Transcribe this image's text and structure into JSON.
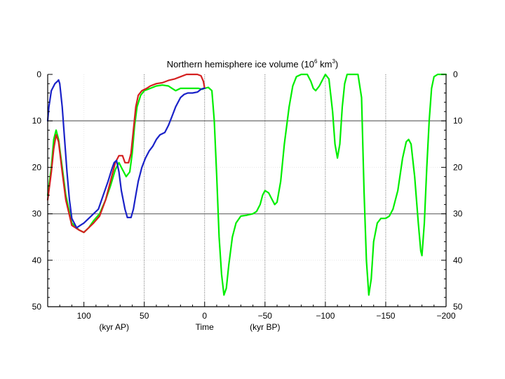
{
  "chart_data": {
    "type": "line",
    "title": "Northern hemisphere ice volume (10",
    "title_exp1": "6",
    "title_mid": " km",
    "title_exp2": "3",
    "title_end": ")",
    "x_axis": {
      "range": [
        130,
        -200
      ],
      "ticks": [
        100,
        50,
        0,
        -50,
        -100,
        -150,
        -200
      ],
      "tick_labels": [
        "100",
        "50",
        "0",
        "−50",
        "−100",
        "−150",
        "−200"
      ],
      "labels": [
        {
          "x": 75,
          "text": "(kyr AP)"
        },
        {
          "x": 0,
          "text": "Time"
        },
        {
          "x": -50,
          "text": "(kyr BP)"
        }
      ]
    },
    "y_axis": {
      "range": [
        0,
        50
      ],
      "inverted": true,
      "ticks": [
        0,
        10,
        20,
        30,
        40,
        50
      ],
      "tick_labels": [
        "0",
        "10",
        "20",
        "30",
        "40",
        "50"
      ]
    },
    "reference_lines_y": [
      10,
      30
    ],
    "dotted_lines_x": [
      50,
      0,
      -50,
      -100,
      -150
    ],
    "series": [
      {
        "color": "#00ee00",
        "points": [
          [
            130,
            26
          ],
          [
            127,
            20
          ],
          [
            125,
            14
          ],
          [
            123,
            12
          ],
          [
            121,
            14
          ],
          [
            118,
            20
          ],
          [
            115,
            26
          ],
          [
            110,
            32
          ],
          [
            104,
            33.5
          ],
          [
            100,
            34
          ],
          [
            96,
            33
          ],
          [
            92,
            31.5
          ],
          [
            87,
            30
          ],
          [
            82,
            27
          ],
          [
            78,
            24
          ],
          [
            74,
            20.5
          ],
          [
            71,
            19
          ],
          [
            68,
            20.5
          ],
          [
            65,
            22
          ],
          [
            62,
            21
          ],
          [
            60,
            17
          ],
          [
            58,
            11
          ],
          [
            56,
            7
          ],
          [
            53,
            4.5
          ],
          [
            50,
            3.5
          ],
          [
            45,
            3
          ],
          [
            40,
            2.5
          ],
          [
            35,
            2.3
          ],
          [
            30,
            2.5
          ],
          [
            27,
            3
          ],
          [
            24,
            3.5
          ],
          [
            20,
            3
          ],
          [
            15,
            3
          ],
          [
            10,
            3
          ],
          [
            5,
            3
          ],
          [
            2,
            3.2
          ],
          [
            0,
            3
          ],
          [
            -3,
            2.8
          ],
          [
            -6,
            3.5
          ],
          [
            -8,
            10
          ],
          [
            -10,
            22
          ],
          [
            -12,
            35
          ],
          [
            -14,
            43
          ],
          [
            -16,
            47.5
          ],
          [
            -18,
            46
          ],
          [
            -20,
            41
          ],
          [
            -23,
            35
          ],
          [
            -26,
            32
          ],
          [
            -30,
            30.5
          ],
          [
            -35,
            30.3
          ],
          [
            -40,
            30
          ],
          [
            -43,
            29.5
          ],
          [
            -46,
            28
          ],
          [
            -48,
            26
          ],
          [
            -50,
            25
          ],
          [
            -53,
            25.5
          ],
          [
            -55,
            26.5
          ],
          [
            -58,
            28
          ],
          [
            -60,
            27.5
          ],
          [
            -63,
            23
          ],
          [
            -66,
            15
          ],
          [
            -70,
            7
          ],
          [
            -73,
            2.5
          ],
          [
            -76,
            0.5
          ],
          [
            -80,
            0
          ],
          [
            -85,
            0
          ],
          [
            -88,
            1.5
          ],
          [
            -90,
            3
          ],
          [
            -92,
            3.5
          ],
          [
            -95,
            2.5
          ],
          [
            -98,
            1
          ],
          [
            -100,
            0
          ],
          [
            -103,
            1
          ],
          [
            -106,
            8
          ],
          [
            -108,
            15
          ],
          [
            -110,
            18
          ],
          [
            -112,
            15
          ],
          [
            -114,
            7
          ],
          [
            -116,
            2
          ],
          [
            -118,
            0
          ],
          [
            -122,
            0
          ],
          [
            -127,
            0
          ],
          [
            -130,
            5
          ],
          [
            -132,
            25
          ],
          [
            -134,
            40
          ],
          [
            -136,
            47.5
          ],
          [
            -138,
            44
          ],
          [
            -140,
            36
          ],
          [
            -143,
            32
          ],
          [
            -146,
            31
          ],
          [
            -150,
            31
          ],
          [
            -153,
            30.5
          ],
          [
            -156,
            29
          ],
          [
            -160,
            25
          ],
          [
            -164,
            18
          ],
          [
            -167,
            14.5
          ],
          [
            -169,
            14
          ],
          [
            -171,
            15
          ],
          [
            -174,
            22
          ],
          [
            -177,
            32
          ],
          [
            -179,
            38
          ],
          [
            -180,
            39
          ],
          [
            -182,
            32
          ],
          [
            -184,
            20
          ],
          [
            -186,
            10
          ],
          [
            -188,
            3
          ],
          [
            -190,
            0.5
          ],
          [
            -193,
            0
          ],
          [
            -200,
            0
          ]
        ]
      },
      {
        "color": "#d42020",
        "points": [
          [
            130,
            27
          ],
          [
            127,
            21
          ],
          [
            125,
            16
          ],
          [
            123,
            13
          ],
          [
            121,
            14.5
          ],
          [
            118,
            21
          ],
          [
            115,
            27
          ],
          [
            110,
            32.5
          ],
          [
            104,
            33.5
          ],
          [
            100,
            34
          ],
          [
            96,
            33
          ],
          [
            92,
            32
          ],
          [
            87,
            30.5
          ],
          [
            82,
            27
          ],
          [
            78,
            23
          ],
          [
            74,
            19
          ],
          [
            71,
            17.5
          ],
          [
            68,
            17.5
          ],
          [
            66,
            19
          ],
          [
            63,
            19
          ],
          [
            61,
            17
          ],
          [
            59,
            12
          ],
          [
            57,
            7
          ],
          [
            55,
            4.5
          ],
          [
            52,
            3.5
          ],
          [
            48,
            3
          ],
          [
            45,
            2.5
          ],
          [
            40,
            2
          ],
          [
            35,
            1.8
          ],
          [
            30,
            1.3
          ],
          [
            25,
            1
          ],
          [
            20,
            0.5
          ],
          [
            15,
            0
          ],
          [
            10,
            0
          ],
          [
            6,
            0
          ],
          [
            3,
            0.3
          ],
          [
            1,
            1.5
          ],
          [
            0,
            3
          ]
        ]
      },
      {
        "color": "#1a22c8",
        "points": [
          [
            130,
            10
          ],
          [
            129,
            7
          ],
          [
            127,
            3.5
          ],
          [
            124,
            2
          ],
          [
            122,
            1.5
          ],
          [
            121,
            1.2
          ],
          [
            120,
            2
          ],
          [
            118,
            7
          ],
          [
            116,
            14
          ],
          [
            114,
            21
          ],
          [
            112,
            27
          ],
          [
            110,
            31
          ],
          [
            106,
            33
          ],
          [
            103,
            32.5
          ],
          [
            100,
            32
          ],
          [
            96,
            31
          ],
          [
            92,
            30
          ],
          [
            88,
            29
          ],
          [
            84,
            26
          ],
          [
            80,
            23
          ],
          [
            77,
            20.5
          ],
          [
            75,
            19
          ],
          [
            73,
            18.5
          ],
          [
            71,
            21
          ],
          [
            69,
            25
          ],
          [
            66,
            29
          ],
          [
            64,
            30.8
          ],
          [
            61,
            30.8
          ],
          [
            59,
            29
          ],
          [
            57,
            26
          ],
          [
            55,
            23
          ],
          [
            52,
            20
          ],
          [
            49,
            18
          ],
          [
            46,
            16.5
          ],
          [
            43,
            15.5
          ],
          [
            40,
            14
          ],
          [
            37,
            13
          ],
          [
            33,
            12.5
          ],
          [
            30,
            11
          ],
          [
            27,
            9
          ],
          [
            24,
            7
          ],
          [
            20,
            5
          ],
          [
            17,
            4.3
          ],
          [
            14,
            4
          ],
          [
            10,
            4
          ],
          [
            6,
            3.8
          ],
          [
            3,
            3.2
          ],
          [
            1,
            3
          ],
          [
            0,
            3
          ]
        ]
      }
    ]
  }
}
